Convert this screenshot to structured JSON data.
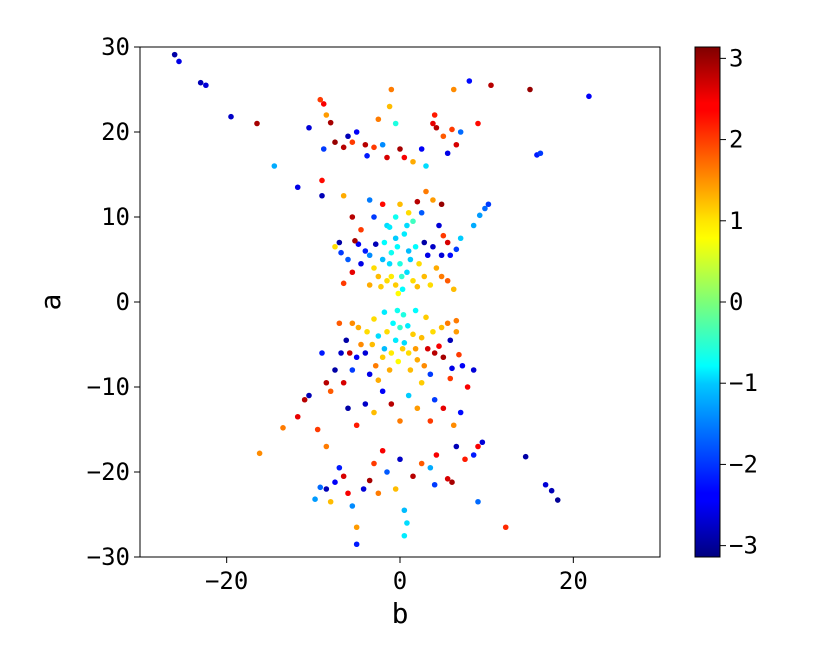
{
  "chart_data": {
    "type": "scatter",
    "title": "",
    "xlabel": "b",
    "ylabel": "a",
    "xlim": [
      -30,
      30
    ],
    "ylim": [
      -30,
      30
    ],
    "xticks": [
      -20,
      0,
      20
    ],
    "yticks": [
      -30,
      -20,
      -10,
      0,
      10,
      20,
      30
    ],
    "xtick_labels": [
      "−20",
      "0",
      "20"
    ],
    "ytick_labels": [
      "−30",
      "−20",
      "−10",
      "0",
      "10",
      "20",
      "30"
    ],
    "grid": false,
    "legend": "none",
    "colormap": "jet",
    "colorbar": {
      "range": [
        -3.14,
        3.14
      ],
      "ticks": [
        -3,
        -2,
        -1,
        0,
        1,
        2,
        3
      ],
      "tick_labels": [
        "−3",
        "−2",
        "−1",
        "0",
        "1",
        "2",
        "3"
      ],
      "placement": "right"
    },
    "points": [
      {
        "x": -26.0,
        "y": 29.1,
        "c": -2.9
      },
      {
        "x": -25.5,
        "y": 28.3,
        "c": -2.5
      },
      {
        "x": -23.0,
        "y": 25.8,
        "c": -2.8
      },
      {
        "x": -22.4,
        "y": 25.5,
        "c": -2.6
      },
      {
        "x": -19.5,
        "y": 21.8,
        "c": -2.7
      },
      {
        "x": -16.5,
        "y": 21.0,
        "c": 2.9
      },
      {
        "x": -14.5,
        "y": 16.0,
        "c": -1.3
      },
      {
        "x": -11.8,
        "y": 13.5,
        "c": -2.5
      },
      {
        "x": -10.5,
        "y": 20.5,
        "c": -2.6
      },
      {
        "x": -9.2,
        "y": 23.8,
        "c": 2.0
      },
      {
        "x": -8.8,
        "y": 23.3,
        "c": 2.4
      },
      {
        "x": -8.5,
        "y": 22.0,
        "c": 1.4
      },
      {
        "x": -8.0,
        "y": 21.1,
        "c": 2.9
      },
      {
        "x": -9.0,
        "y": 14.3,
        "c": 2.3
      },
      {
        "x": -9.0,
        "y": 12.5,
        "c": -2.8
      },
      {
        "x": -8.8,
        "y": 18.0,
        "c": -2.0
      },
      {
        "x": -7.5,
        "y": 18.8,
        "c": 3.0
      },
      {
        "x": -6.5,
        "y": 18.2,
        "c": 2.8
      },
      {
        "x": -6.0,
        "y": 19.5,
        "c": -2.8
      },
      {
        "x": -5.5,
        "y": 18.8,
        "c": 2.0
      },
      {
        "x": -5.0,
        "y": 20.0,
        "c": -2.4
      },
      {
        "x": -4.0,
        "y": 18.5,
        "c": 2.8
      },
      {
        "x": -3.8,
        "y": 17.2,
        "c": -2.2
      },
      {
        "x": -3.0,
        "y": 18.2,
        "c": 2.0
      },
      {
        "x": -2.5,
        "y": 21.5,
        "c": 1.6
      },
      {
        "x": -2.0,
        "y": 18.5,
        "c": -1.5
      },
      {
        "x": -1.5,
        "y": 17.0,
        "c": 2.6
      },
      {
        "x": -1.0,
        "y": 25.0,
        "c": 1.6
      },
      {
        "x": -1.2,
        "y": 23.0,
        "c": 1.2
      },
      {
        "x": -0.5,
        "y": 21.0,
        "c": -0.6
      },
      {
        "x": 0.0,
        "y": 18.0,
        "c": 2.9
      },
      {
        "x": 0.5,
        "y": 17.0,
        "c": 2.4
      },
      {
        "x": 1.5,
        "y": 16.5,
        "c": 1.3
      },
      {
        "x": 2.5,
        "y": 18.0,
        "c": -2.4
      },
      {
        "x": 3.0,
        "y": 16.0,
        "c": -1.0
      },
      {
        "x": 3.8,
        "y": 21.0,
        "c": 2.5
      },
      {
        "x": 4.0,
        "y": 22.0,
        "c": 2.2
      },
      {
        "x": 4.2,
        "y": 20.5,
        "c": 2.8
      },
      {
        "x": 5.0,
        "y": 19.5,
        "c": 1.8
      },
      {
        "x": 5.5,
        "y": 17.5,
        "c": -2.5
      },
      {
        "x": 6.0,
        "y": 20.3,
        "c": 2.0
      },
      {
        "x": 6.5,
        "y": 18.5,
        "c": 2.6
      },
      {
        "x": 7.0,
        "y": 20.0,
        "c": -1.7
      },
      {
        "x": 6.2,
        "y": 25.0,
        "c": 1.5
      },
      {
        "x": 8.0,
        "y": 26.0,
        "c": -2.3
      },
      {
        "x": 9.0,
        "y": 21.0,
        "c": 2.3
      },
      {
        "x": 10.5,
        "y": 25.5,
        "c": 2.8
      },
      {
        "x": 15.0,
        "y": 25.0,
        "c": 3.0
      },
      {
        "x": 15.8,
        "y": 17.3,
        "c": -2.2
      },
      {
        "x": 16.2,
        "y": 17.5,
        "c": -2.0
      },
      {
        "x": 21.8,
        "y": 24.2,
        "c": -2.4
      },
      {
        "x": 10.2,
        "y": 11.5,
        "c": -2.0
      },
      {
        "x": 9.8,
        "y": 11.0,
        "c": -1.7
      },
      {
        "x": 9.2,
        "y": 10.2,
        "c": -1.4
      },
      {
        "x": 8.5,
        "y": 9.0,
        "c": -1.3
      },
      {
        "x": 7.0,
        "y": 7.5,
        "c": -1.1
      },
      {
        "x": 6.5,
        "y": 6.2,
        "c": -2.0
      },
      {
        "x": 5.8,
        "y": 5.5,
        "c": -2.3
      },
      {
        "x": 5.0,
        "y": 7.8,
        "c": 2.0
      },
      {
        "x": 4.5,
        "y": 9.0,
        "c": -2.6
      },
      {
        "x": 4.8,
        "y": 11.5,
        "c": 3.0
      },
      {
        "x": 3.8,
        "y": 12.0,
        "c": 1.4
      },
      {
        "x": 3.0,
        "y": 13.0,
        "c": 1.6
      },
      {
        "x": 2.5,
        "y": 10.5,
        "c": -1.8
      },
      {
        "x": 2.0,
        "y": 11.8,
        "c": 2.8
      },
      {
        "x": 1.5,
        "y": 9.5,
        "c": -0.4
      },
      {
        "x": 1.0,
        "y": 10.5,
        "c": 1.0
      },
      {
        "x": 0.0,
        "y": 11.5,
        "c": 1.2
      },
      {
        "x": -0.5,
        "y": 10.0,
        "c": -0.7
      },
      {
        "x": -1.5,
        "y": 9.0,
        "c": -1.0
      },
      {
        "x": -2.0,
        "y": 11.5,
        "c": 2.3
      },
      {
        "x": -3.0,
        "y": 10.0,
        "c": -2.0
      },
      {
        "x": -3.5,
        "y": 12.0,
        "c": -1.6
      },
      {
        "x": -4.5,
        "y": 8.5,
        "c": 2.0
      },
      {
        "x": -5.5,
        "y": 10.0,
        "c": 2.8
      },
      {
        "x": -6.5,
        "y": 12.5,
        "c": 1.3
      },
      {
        "x": -7.0,
        "y": 7.0,
        "c": -2.9
      },
      {
        "x": -7.5,
        "y": 6.5,
        "c": 1.0
      },
      {
        "x": -6.8,
        "y": 5.8,
        "c": -2.0
      },
      {
        "x": -6.0,
        "y": 5.0,
        "c": -1.8
      },
      {
        "x": -5.5,
        "y": 3.5,
        "c": 2.5
      },
      {
        "x": -4.5,
        "y": 4.5,
        "c": -2.5
      },
      {
        "x": -4.0,
        "y": 6.0,
        "c": -2.2
      },
      {
        "x": -3.5,
        "y": 5.5,
        "c": -1.5
      },
      {
        "x": -3.0,
        "y": 4.0,
        "c": 1.0
      },
      {
        "x": -2.5,
        "y": 3.0,
        "c": 1.2
      },
      {
        "x": -2.0,
        "y": 5.0,
        "c": -1.2
      },
      {
        "x": -1.8,
        "y": 7.0,
        "c": -0.8
      },
      {
        "x": -1.2,
        "y": 4.5,
        "c": -1.0
      },
      {
        "x": -1.0,
        "y": 3.0,
        "c": 0.9
      },
      {
        "x": -0.5,
        "y": 2.0,
        "c": 1.1
      },
      {
        "x": -0.2,
        "y": 1.0,
        "c": 0.8
      },
      {
        "x": 0.3,
        "y": 1.5,
        "c": -0.8
      },
      {
        "x": 0.8,
        "y": 3.5,
        "c": -1.0
      },
      {
        "x": 1.2,
        "y": 5.0,
        "c": -1.1
      },
      {
        "x": 1.8,
        "y": 6.5,
        "c": -0.8
      },
      {
        "x": 2.2,
        "y": 4.5,
        "c": 1.0
      },
      {
        "x": 2.8,
        "y": 3.0,
        "c": 1.2
      },
      {
        "x": 3.2,
        "y": 5.5,
        "c": -2.5
      },
      {
        "x": 3.8,
        "y": 6.5,
        "c": -2.7
      },
      {
        "x": 4.2,
        "y": 4.0,
        "c": 1.3
      },
      {
        "x": 4.8,
        "y": 3.0,
        "c": 1.6
      },
      {
        "x": 5.5,
        "y": 2.5,
        "c": 1.8
      },
      {
        "x": -0.5,
        "y": 7.5,
        "c": -1.1
      },
      {
        "x": 0.5,
        "y": 8.0,
        "c": -0.9
      },
      {
        "x": 1.0,
        "y": 6.0,
        "c": -1.2
      },
      {
        "x": -1.0,
        "y": 5.8,
        "c": -0.7
      },
      {
        "x": 0.0,
        "y": 4.5,
        "c": -0.6
      },
      {
        "x": -1.5,
        "y": 2.5,
        "c": 1.0
      },
      {
        "x": 1.5,
        "y": 2.5,
        "c": 1.0
      },
      {
        "x": -2.2,
        "y": 1.8,
        "c": 1.1
      },
      {
        "x": 2.0,
        "y": 1.8,
        "c": 1.2
      },
      {
        "x": -3.5,
        "y": 2.0,
        "c": 1.3
      },
      {
        "x": 3.5,
        "y": 2.0,
        "c": 1.0
      },
      {
        "x": -6.5,
        "y": 2.2,
        "c": 2.0
      },
      {
        "x": 6.2,
        "y": 1.5,
        "c": 1.2
      },
      {
        "x": -2.8,
        "y": 6.8,
        "c": -2.8
      },
      {
        "x": 2.8,
        "y": 7.0,
        "c": -2.9
      },
      {
        "x": -4.8,
        "y": 6.8,
        "c": -2.4
      },
      {
        "x": 4.8,
        "y": 5.5,
        "c": -2.6
      },
      {
        "x": -5.2,
        "y": 7.2,
        "c": 2.9
      },
      {
        "x": 5.5,
        "y": 7.0,
        "c": 2.6
      },
      {
        "x": -1.2,
        "y": 8.8,
        "c": -0.9
      },
      {
        "x": 0.8,
        "y": 9.0,
        "c": -1.0
      },
      {
        "x": -0.3,
        "y": 6.5,
        "c": -0.8
      },
      {
        "x": 0.2,
        "y": 3.0,
        "c": -0.5
      },
      {
        "x": -0.3,
        "y": -1.0,
        "c": -0.7
      },
      {
        "x": 0.4,
        "y": -1.5,
        "c": -0.6
      },
      {
        "x": -0.8,
        "y": -2.5,
        "c": -0.8
      },
      {
        "x": 0.9,
        "y": -2.8,
        "c": -0.9
      },
      {
        "x": -1.5,
        "y": -3.5,
        "c": 1.0
      },
      {
        "x": 1.5,
        "y": -3.8,
        "c": 1.1
      },
      {
        "x": -2.5,
        "y": -4.0,
        "c": -1.0
      },
      {
        "x": 2.5,
        "y": -4.2,
        "c": 1.2
      },
      {
        "x": -3.2,
        "y": -5.0,
        "c": 1.2
      },
      {
        "x": 3.2,
        "y": -5.5,
        "c": 2.6
      },
      {
        "x": -4.0,
        "y": -6.0,
        "c": -2.6
      },
      {
        "x": 4.0,
        "y": -6.0,
        "c": 2.8
      },
      {
        "x": -4.5,
        "y": -5.0,
        "c": 1.5
      },
      {
        "x": 4.5,
        "y": -5.2,
        "c": 2.4
      },
      {
        "x": -5.0,
        "y": -6.5,
        "c": -2.4
      },
      {
        "x": 5.0,
        "y": -6.5,
        "c": 2.9
      },
      {
        "x": -5.8,
        "y": -6.0,
        "c": 2.7
      },
      {
        "x": 5.8,
        "y": -4.5,
        "c": -2.8
      },
      {
        "x": -6.2,
        "y": -4.5,
        "c": -2.9
      },
      {
        "x": 6.5,
        "y": -3.5,
        "c": 1.4
      },
      {
        "x": -2.0,
        "y": -6.5,
        "c": 1.1
      },
      {
        "x": 2.0,
        "y": -6.8,
        "c": 1.3
      },
      {
        "x": -1.0,
        "y": -6.0,
        "c": 0.9
      },
      {
        "x": 1.0,
        "y": -6.0,
        "c": 1.0
      },
      {
        "x": -0.5,
        "y": -4.5,
        "c": -0.9
      },
      {
        "x": 0.5,
        "y": -4.8,
        "c": -1.0
      },
      {
        "x": -1.8,
        "y": -5.5,
        "c": -1.2
      },
      {
        "x": 1.8,
        "y": -5.5,
        "c": 1.4
      },
      {
        "x": -2.8,
        "y": -7.5,
        "c": 1.6
      },
      {
        "x": 2.8,
        "y": -7.5,
        "c": 1.5
      },
      {
        "x": -3.5,
        "y": -8.5,
        "c": -2.5
      },
      {
        "x": 3.5,
        "y": -8.5,
        "c": -2.0
      },
      {
        "x": -1.2,
        "y": -8.0,
        "c": 1.3
      },
      {
        "x": 1.2,
        "y": -8.0,
        "c": 1.2
      },
      {
        "x": 0.0,
        "y": -3.0,
        "c": -0.5
      },
      {
        "x": -0.2,
        "y": -7.0,
        "c": 0.8
      },
      {
        "x": 0.3,
        "y": -5.5,
        "c": 1.1
      },
      {
        "x": -3.8,
        "y": -3.5,
        "c": 1.0
      },
      {
        "x": 3.8,
        "y": -3.5,
        "c": 1.0
      },
      {
        "x": -4.8,
        "y": -3.0,
        "c": 1.3
      },
      {
        "x": 4.8,
        "y": -3.0,
        "c": 1.2
      },
      {
        "x": -5.5,
        "y": -2.5,
        "c": 1.5
      },
      {
        "x": 6.5,
        "y": -2.2,
        "c": 1.6
      },
      {
        "x": -6.8,
        "y": -6.0,
        "c": -2.7
      },
      {
        "x": 6.8,
        "y": -6.2,
        "c": 2.0
      },
      {
        "x": -7.5,
        "y": -8.0,
        "c": -2.9
      },
      {
        "x": 7.2,
        "y": -7.5,
        "c": -2.4
      },
      {
        "x": -8.5,
        "y": -9.5,
        "c": 2.8
      },
      {
        "x": 8.5,
        "y": -8.0,
        "c": -2.6
      },
      {
        "x": -9.0,
        "y": -6.0,
        "c": -2.2
      },
      {
        "x": -8.0,
        "y": -10.5,
        "c": 1.8
      },
      {
        "x": 7.8,
        "y": -10.0,
        "c": 2.4
      },
      {
        "x": -10.5,
        "y": -11.0,
        "c": -2.8
      },
      {
        "x": -11.0,
        "y": -11.5,
        "c": 2.8
      },
      {
        "x": -11.8,
        "y": -13.5,
        "c": 2.5
      },
      {
        "x": -13.5,
        "y": -14.8,
        "c": 1.6
      },
      {
        "x": -16.2,
        "y": -17.8,
        "c": 1.5
      },
      {
        "x": -9.5,
        "y": -15.0,
        "c": 2.0
      },
      {
        "x": -8.5,
        "y": -17.0,
        "c": 1.6
      },
      {
        "x": -7.0,
        "y": -19.5,
        "c": -2.2
      },
      {
        "x": -6.5,
        "y": -20.5,
        "c": 2.6
      },
      {
        "x": -7.5,
        "y": -21.2,
        "c": -2.4
      },
      {
        "x": -8.5,
        "y": -22.0,
        "c": -2.8
      },
      {
        "x": -9.2,
        "y": -21.8,
        "c": -1.7
      },
      {
        "x": -9.8,
        "y": -23.2,
        "c": -1.4
      },
      {
        "x": -8.0,
        "y": -23.5,
        "c": 1.2
      },
      {
        "x": -6.0,
        "y": -22.5,
        "c": 2.4
      },
      {
        "x": -5.5,
        "y": -24.0,
        "c": -1.5
      },
      {
        "x": -5.0,
        "y": -26.5,
        "c": 1.4
      },
      {
        "x": -5.0,
        "y": -28.5,
        "c": -2.2
      },
      {
        "x": -4.2,
        "y": -22.0,
        "c": -2.6
      },
      {
        "x": -3.5,
        "y": -21.0,
        "c": 2.9
      },
      {
        "x": -3.0,
        "y": -19.0,
        "c": 2.0
      },
      {
        "x": -2.5,
        "y": -22.5,
        "c": 1.6
      },
      {
        "x": -2.0,
        "y": -17.5,
        "c": 2.4
      },
      {
        "x": -1.5,
        "y": -20.0,
        "c": -1.8
      },
      {
        "x": -0.5,
        "y": -22.0,
        "c": 1.2
      },
      {
        "x": 0.0,
        "y": -18.5,
        "c": -2.7
      },
      {
        "x": 0.5,
        "y": -24.5,
        "c": -1.2
      },
      {
        "x": 0.8,
        "y": -26.0,
        "c": -1.0
      },
      {
        "x": 0.5,
        "y": -27.5,
        "c": -0.9
      },
      {
        "x": 1.5,
        "y": -20.5,
        "c": 2.8
      },
      {
        "x": 2.5,
        "y": -19.0,
        "c": 1.8
      },
      {
        "x": 3.5,
        "y": -19.5,
        "c": -1.3
      },
      {
        "x": 4.0,
        "y": -21.5,
        "c": -2.0
      },
      {
        "x": 4.2,
        "y": -18.0,
        "c": 2.4
      },
      {
        "x": 5.5,
        "y": -20.8,
        "c": 2.6
      },
      {
        "x": 6.0,
        "y": -21.2,
        "c": 2.9
      },
      {
        "x": 6.5,
        "y": -17.0,
        "c": -2.8
      },
      {
        "x": 7.5,
        "y": -18.5,
        "c": 2.2
      },
      {
        "x": 8.5,
        "y": -18.0,
        "c": -2.2
      },
      {
        "x": 9.0,
        "y": -17.0,
        "c": 2.4
      },
      {
        "x": 9.5,
        "y": -16.5,
        "c": -2.6
      },
      {
        "x": 9.0,
        "y": -23.5,
        "c": -1.7
      },
      {
        "x": 12.2,
        "y": -26.5,
        "c": 2.1
      },
      {
        "x": 14.5,
        "y": -18.2,
        "c": -2.9
      },
      {
        "x": 16.8,
        "y": -21.5,
        "c": -2.6
      },
      {
        "x": 17.5,
        "y": -22.2,
        "c": -2.8
      },
      {
        "x": 18.2,
        "y": -23.3,
        "c": -3.0
      },
      {
        "x": 6.2,
        "y": -14.5,
        "c": 1.5
      },
      {
        "x": 7.0,
        "y": -13.0,
        "c": -2.3
      },
      {
        "x": 5.0,
        "y": -12.5,
        "c": 2.5
      },
      {
        "x": 4.0,
        "y": -11.5,
        "c": -2.0
      },
      {
        "x": 3.5,
        "y": -14.0,
        "c": 2.0
      },
      {
        "x": 2.0,
        "y": -12.5,
        "c": 1.4
      },
      {
        "x": 1.0,
        "y": -11.0,
        "c": -1.1
      },
      {
        "x": 0.0,
        "y": -14.0,
        "c": 1.6
      },
      {
        "x": -1.0,
        "y": -12.0,
        "c": 2.8
      },
      {
        "x": -2.0,
        "y": -10.5,
        "c": -2.4
      },
      {
        "x": -3.0,
        "y": -13.0,
        "c": 1.2
      },
      {
        "x": -4.0,
        "y": -12.0,
        "c": -2.7
      },
      {
        "x": -5.0,
        "y": -14.5,
        "c": 2.2
      },
      {
        "x": -6.0,
        "y": -12.5,
        "c": -2.9
      },
      {
        "x": -6.5,
        "y": -9.5,
        "c": 2.6
      },
      {
        "x": -5.5,
        "y": -8.0,
        "c": -2.0
      },
      {
        "x": -2.5,
        "y": -9.2,
        "c": 1.3
      },
      {
        "x": 2.5,
        "y": -9.5,
        "c": 1.1
      },
      {
        "x": 5.8,
        "y": -9.0,
        "c": 2.0
      },
      {
        "x": 6.0,
        "y": -7.8,
        "c": -2.5
      },
      {
        "x": 5.5,
        "y": -2.5,
        "c": 1.6
      },
      {
        "x": -7.0,
        "y": -2.5,
        "c": 1.8
      },
      {
        "x": -3.0,
        "y": -2.0,
        "c": 1.0
      },
      {
        "x": 3.0,
        "y": -1.8,
        "c": 1.1
      },
      {
        "x": -1.8,
        "y": -1.2,
        "c": -0.9
      },
      {
        "x": 1.8,
        "y": -1.0,
        "c": -0.8
      }
    ]
  }
}
